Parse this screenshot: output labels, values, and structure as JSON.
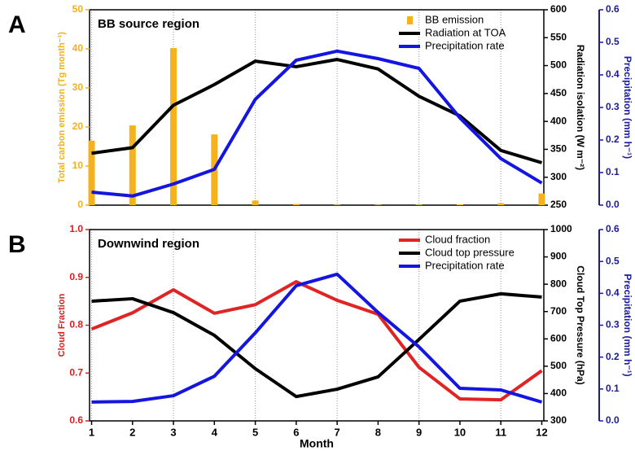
{
  "chart_data": [
    {
      "type": "line",
      "label": "A",
      "title": "BB source region",
      "ylabel": "Total carbon emission (Tg month⁻¹)",
      "ycolor": "#f0b020",
      "y2label": "Radiation isolation (W m⁻²)",
      "y2color": "#000000",
      "y3label": "Precipitation (mm h⁻¹)",
      "y3color": "#1a1aa0",
      "xlim": [
        0.95,
        12.05
      ],
      "xgrid": [
        1,
        3,
        5,
        7,
        9,
        11
      ],
      "ylim": [
        0,
        50
      ],
      "yticks": [
        0,
        10,
        20,
        30,
        40,
        50
      ],
      "y2lim": [
        250,
        600
      ],
      "y2ticks": [
        250,
        300,
        350,
        400,
        450,
        500,
        550,
        600
      ],
      "y3lim": [
        0,
        0.6
      ],
      "y3ticks": [
        {
          "value": 0,
          "label": "0.0"
        },
        0.1,
        0.2,
        0.3,
        0.4,
        0.5,
        0.6
      ],
      "x": [
        1,
        2,
        3,
        4,
        5,
        6,
        7,
        8,
        9,
        10,
        11,
        12
      ],
      "legend": "upper right",
      "series": [
        {
          "name": "BB emission",
          "type": "bar",
          "axis": "y",
          "color": "#f5b21c",
          "values": [
            16.5,
            20.4,
            40.2,
            18.1,
            1.2,
            0.3,
            0.1,
            0.1,
            0.1,
            0.2,
            0.5,
            3.0
          ]
        },
        {
          "name": "Radiation at TOA",
          "type": "line",
          "axis": "y2",
          "color": "#000000",
          "values": [
            343,
            353,
            429,
            466,
            508,
            498,
            511,
            494,
            445,
            410,
            348,
            326
          ]
        },
        {
          "name": "Precipitation rate",
          "type": "line",
          "axis": "y3",
          "color": "#1515e0",
          "values": [
            0.04,
            0.028,
            0.065,
            0.11,
            0.325,
            0.445,
            0.473,
            0.45,
            0.42,
            0.268,
            0.143,
            0.068
          ]
        }
      ]
    },
    {
      "type": "line",
      "label": "B",
      "title": "Downwind region",
      "ylabel": "Cloud Fraction",
      "ycolor": "#d42020",
      "y2label": "Cloud Top Pressure (hPa)",
      "y2color": "#000000",
      "y3label": "Precipitation (mm h⁻¹)",
      "y3color": "#1a1aa0",
      "xlabel": "Month",
      "xlim": [
        0.95,
        12.05
      ],
      "xticks": [
        1,
        2,
        3,
        4,
        5,
        6,
        7,
        8,
        9,
        10,
        11,
        12
      ],
      "xgrid": [
        1,
        3,
        5,
        7,
        9,
        11
      ],
      "ylim": [
        0.6,
        1.0
      ],
      "yticks": [
        0.6,
        0.7,
        0.8,
        0.9,
        {
          "value": 1.0,
          "label": "1.0"
        }
      ],
      "y2lim": [
        300,
        1000
      ],
      "y2ticks": [
        300,
        400,
        500,
        600,
        700,
        800,
        900,
        1000
      ],
      "y3lim": [
        0,
        0.6
      ],
      "y3ticks": [
        {
          "value": 0,
          "label": "0.0"
        },
        0.1,
        0.2,
        0.3,
        0.4,
        0.5,
        0.6
      ],
      "x": [
        1,
        2,
        3,
        4,
        5,
        6,
        7,
        8,
        9,
        10,
        11,
        12
      ],
      "legend": "upper right",
      "series": [
        {
          "name": "Cloud fraction",
          "type": "line",
          "axis": "y",
          "color": "#e02424",
          "values": [
            0.792,
            0.826,
            0.874,
            0.825,
            0.843,
            0.891,
            0.852,
            0.823,
            0.712,
            0.646,
            0.644,
            0.705
          ]
        },
        {
          "name": "Cloud top pressure",
          "type": "line",
          "axis": "y2",
          "color": "#000000",
          "values": [
            738,
            747,
            696,
            613,
            491,
            389,
            416,
            461,
            598,
            738,
            765,
            753
          ]
        },
        {
          "name": "Precipitation rate",
          "type": "line",
          "axis": "y3",
          "color": "#1515e0",
          "values": [
            0.059,
            0.061,
            0.079,
            0.14,
            0.276,
            0.424,
            0.46,
            0.34,
            0.232,
            0.102,
            0.097,
            0.059
          ]
        }
      ]
    }
  ]
}
